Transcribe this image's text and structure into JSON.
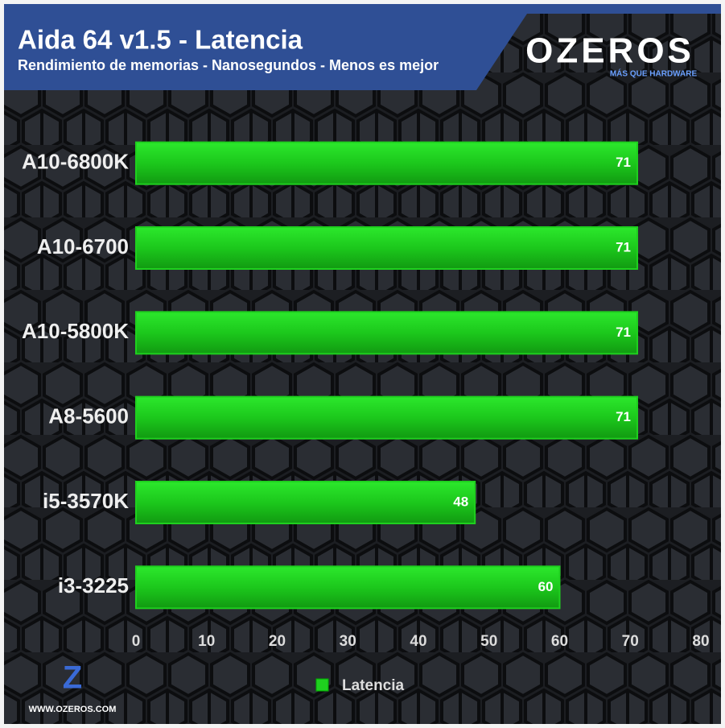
{
  "chart_data": {
    "type": "hbar",
    "title": "Aida 64 v1.5 - Latencia",
    "subtitle": "Rendimiento de memorias - Nanosegundos - Menos es mejor",
    "categories": [
      "A10-6800K",
      "A10-6700",
      "A10-5800K",
      "A8-5600",
      "i5-3570K",
      "i3-3225"
    ],
    "series": [
      {
        "name": "Latencia",
        "color": "#1fd01f",
        "values": [
          71,
          71,
          71,
          71,
          48,
          60
        ]
      }
    ],
    "xlim": [
      0,
      80
    ],
    "xticks": [
      0,
      10,
      20,
      30,
      40,
      50,
      60,
      70,
      80
    ],
    "legend": "bottom"
  },
  "branding": {
    "logo": "OZEROS",
    "tagline": "MÁS QUE HARDWARE",
    "website": "WWW.OZEROS.COM"
  }
}
